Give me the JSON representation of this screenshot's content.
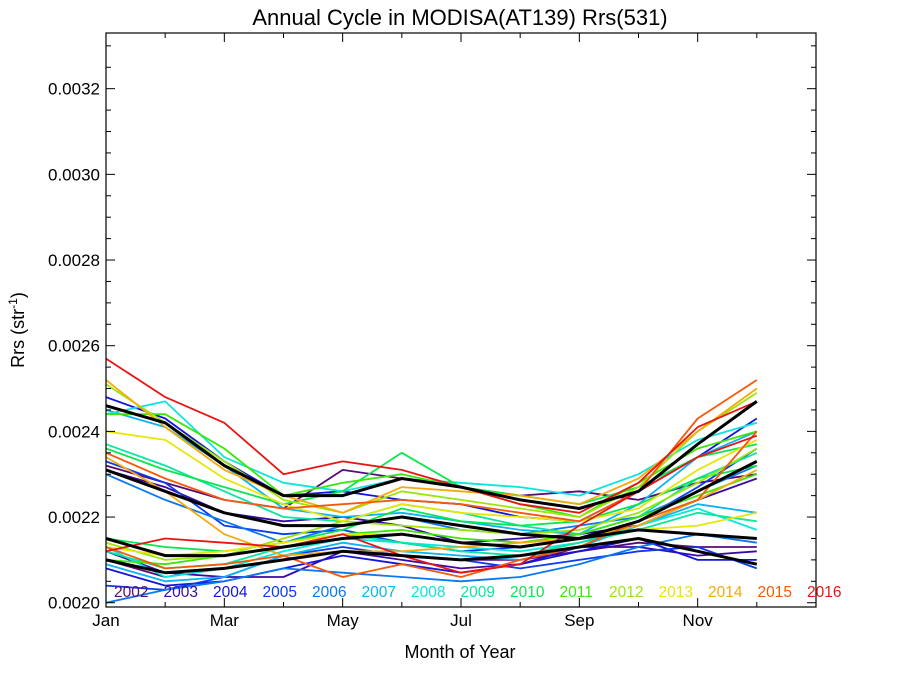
{
  "chart_data": {
    "type": "line",
    "title": "Annual Cycle in MODISA(AT139) Rrs(531)",
    "xlabel": "Month of Year",
    "ylabel": "Rrs (str",
    "ylabel_exponent": "-1",
    "ylabel_suffix": ")",
    "xlim": [
      1,
      13
    ],
    "ylim": [
      0.00199,
      0.00333
    ],
    "x": [
      1,
      2,
      3,
      4,
      5,
      6,
      7,
      8,
      9,
      10,
      11,
      12
    ],
    "xticks": [
      {
        "value": 1,
        "label": "Jan"
      },
      {
        "value": 3,
        "label": "Mar"
      },
      {
        "value": 5,
        "label": "May"
      },
      {
        "value": 7,
        "label": "Jul"
      },
      {
        "value": 9,
        "label": "Sep"
      },
      {
        "value": 11,
        "label": "Nov"
      }
    ],
    "yticks": [
      {
        "value": 0.002,
        "label": "0.0020"
      },
      {
        "value": 0.0022,
        "label": "0.0022"
      },
      {
        "value": 0.0024,
        "label": "0.0024"
      },
      {
        "value": 0.0026,
        "label": "0.0026"
      },
      {
        "value": 0.0028,
        "label": "0.0028"
      },
      {
        "value": 0.003,
        "label": "0.0030"
      },
      {
        "value": 0.0032,
        "label": "0.0032"
      }
    ],
    "grid": false,
    "legend_placement": "bottom",
    "series": [
      {
        "name": "2002",
        "color": "#5a0a78",
        "lines": [
          [
            0.00232,
            0.00228,
            0.00224,
            0.00222,
            0.00231,
            0.00229,
            0.00227,
            0.00225,
            0.00226,
            0.00224,
            0.00228,
            0.0023
          ],
          [
            0.0021,
            0.00206,
            0.00208,
            0.0021,
            0.00212,
            0.00211,
            0.0021,
            0.0021,
            0.00212,
            0.00214,
            0.00213,
            0.00213
          ]
        ]
      },
      {
        "name": "2003",
        "color": "#3a0aa5",
        "lines": [
          [
            0.00231,
            0.00227,
            0.00221,
            0.00219,
            0.0022,
            0.00218,
            0.00214,
            0.00215,
            0.00216,
            0.00218,
            0.00224,
            0.00229
          ],
          [
            0.00212,
            0.00207,
            0.00206,
            0.00206,
            0.00212,
            0.0021,
            0.00208,
            0.00209,
            0.00213,
            0.00213,
            0.00211,
            0.00212
          ]
        ]
      },
      {
        "name": "2004",
        "color": "#1414dc",
        "lines": [
          [
            0.00248,
            0.00243,
            0.00233,
            0.00225,
            0.00226,
            0.00224,
            0.00223,
            0.0022,
            0.00219,
            0.00226,
            0.00234,
            0.00243
          ],
          [
            0.00208,
            0.00204,
            0.00205,
            0.00208,
            0.00211,
            0.00209,
            0.00207,
            0.00209,
            0.00212,
            0.00215,
            0.0021,
            0.0021
          ]
        ]
      },
      {
        "name": "2005",
        "color": "#0a3cf0",
        "lines": [
          [
            0.00233,
            0.00228,
            0.00218,
            0.00216,
            0.00217,
            0.00214,
            0.00212,
            0.00213,
            0.00215,
            0.00219,
            0.00227,
            0.00236
          ],
          [
            0.00204,
            0.00203,
            0.00206,
            0.00211,
            0.00213,
            0.00211,
            0.0021,
            0.00208,
            0.0021,
            0.00212,
            0.00213,
            0.00208
          ]
        ]
      },
      {
        "name": "2006",
        "color": "#0a78f0",
        "lines": [
          [
            0.0023,
            0.00224,
            0.00219,
            0.00214,
            0.00218,
            0.0022,
            0.00217,
            0.00216,
            0.00218,
            0.0022,
            0.00226,
            0.00232
          ],
          [
            0.002,
            0.00203,
            0.00205,
            0.00208,
            0.00207,
            0.00206,
            0.00205,
            0.00206,
            0.00209,
            0.00213,
            0.00216,
            0.00214
          ]
        ]
      },
      {
        "name": "2007",
        "color": "#0ab4f5",
        "lines": [
          [
            0.00245,
            0.00241,
            0.00232,
            0.00222,
            0.0022,
            0.00221,
            0.00219,
            0.00217,
            0.00216,
            0.00223,
            0.00234,
            0.0024
          ],
          [
            0.00209,
            0.00205,
            0.00206,
            0.00211,
            0.00214,
            0.00212,
            0.00211,
            0.0021,
            0.00213,
            0.00218,
            0.00223,
            0.00221
          ]
        ]
      },
      {
        "name": "2008",
        "color": "#0ae6dc",
        "lines": [
          [
            0.00244,
            0.00247,
            0.00234,
            0.00228,
            0.00226,
            0.00229,
            0.00228,
            0.00227,
            0.00225,
            0.0023,
            0.00238,
            0.00242
          ],
          [
            0.00213,
            0.00206,
            0.00208,
            0.00212,
            0.00215,
            0.00214,
            0.00213,
            0.00212,
            0.00214,
            0.00218,
            0.00222,
            0.00217
          ]
        ]
      },
      {
        "name": "2009",
        "color": "#0ae6a0",
        "lines": [
          [
            0.00237,
            0.00232,
            0.00226,
            0.0022,
            0.00219,
            0.00223,
            0.00221,
            0.00218,
            0.00216,
            0.0022,
            0.00229,
            0.00235
          ],
          [
            0.00212,
            0.00208,
            0.00209,
            0.00213,
            0.00216,
            0.00214,
            0.00212,
            0.00211,
            0.00214,
            0.00217,
            0.00221,
            0.00219
          ]
        ]
      },
      {
        "name": "2010",
        "color": "#0ae650",
        "lines": [
          [
            0.00236,
            0.00231,
            0.00227,
            0.00223,
            0.00226,
            0.00235,
            0.00227,
            0.00225,
            0.00223,
            0.00227,
            0.00234,
            0.00237
          ],
          [
            0.00215,
            0.00213,
            0.00212,
            0.00214,
            0.00217,
            0.00222,
            0.00219,
            0.00218,
            0.00219,
            0.00223,
            0.00229,
            0.00232
          ]
        ]
      },
      {
        "name": "2011",
        "color": "#3ce60a",
        "lines": [
          [
            0.00244,
            0.00244,
            0.00236,
            0.00225,
            0.00228,
            0.0023,
            0.00227,
            0.00223,
            0.0022,
            0.00228,
            0.00236,
            0.0024
          ],
          [
            0.0021,
            0.00209,
            0.00211,
            0.00213,
            0.00216,
            0.00217,
            0.00215,
            0.00214,
            0.00216,
            0.0022,
            0.00225,
            0.0023
          ]
        ]
      },
      {
        "name": "2012",
        "color": "#9be60a",
        "lines": [
          [
            0.00251,
            0.00242,
            0.00233,
            0.00224,
            0.00221,
            0.00226,
            0.00224,
            0.00222,
            0.0022,
            0.00227,
            0.0024,
            0.00249
          ],
          [
            0.00214,
            0.0021,
            0.00211,
            0.00215,
            0.00219,
            0.00218,
            0.00217,
            0.00216,
            0.00217,
            0.00221,
            0.00228,
            0.00236
          ]
        ]
      },
      {
        "name": "2013",
        "color": "#e6e60a",
        "lines": [
          [
            0.0024,
            0.00238,
            0.00229,
            0.00223,
            0.00219,
            0.00223,
            0.00221,
            0.0022,
            0.00219,
            0.00222,
            0.00231,
            0.00238
          ],
          [
            0.00213,
            0.00211,
            0.00212,
            0.00214,
            0.00216,
            0.00216,
            0.00214,
            0.00213,
            0.00215,
            0.00217,
            0.00218,
            0.00221
          ]
        ]
      },
      {
        "name": "2014",
        "color": "#f5aa0a",
        "lines": [
          [
            0.00252,
            0.00241,
            0.00231,
            0.00225,
            0.00221,
            0.00227,
            0.00226,
            0.00225,
            0.00223,
            0.00229,
            0.0024,
            0.0025
          ],
          [
            0.00234,
            0.00226,
            0.00216,
            0.00211,
            0.00212,
            0.00212,
            0.00213,
            0.00214,
            0.00215,
            0.00218,
            0.00224,
            0.00231
          ]
        ]
      },
      {
        "name": "2015",
        "color": "#f55a0a",
        "lines": [
          [
            0.00235,
            0.00229,
            0.00224,
            0.00222,
            0.00223,
            0.00224,
            0.00223,
            0.00221,
            0.00219,
            0.00226,
            0.00243,
            0.00252
          ],
          [
            0.00213,
            0.00208,
            0.00209,
            0.00211,
            0.00206,
            0.00209,
            0.00206,
            0.0021,
            0.00213,
            0.00219,
            0.00224,
            0.0024
          ]
        ]
      },
      {
        "name": "2016",
        "color": "#eb1414",
        "lines": [
          [
            0.00257,
            0.00248,
            0.00242,
            0.0023,
            0.00233,
            0.00231,
            0.00227,
            0.00223,
            0.00221,
            0.00228,
            0.00241,
            0.00247
          ],
          [
            0.00212,
            0.00215,
            0.00214,
            0.00213,
            0.00216,
            0.00211,
            0.00207,
            0.00209,
            0.00218,
            0.00226,
            0.00234,
            0.00239
          ]
        ]
      }
    ],
    "mean_lines": {
      "color": "#000000",
      "lines": [
        [
          0.00246,
          0.00242,
          0.00232,
          0.00225,
          0.00225,
          0.00229,
          0.00227,
          0.00224,
          0.00222,
          0.00226,
          0.00237,
          0.00247
        ],
        [
          0.00231,
          0.00226,
          0.00221,
          0.00218,
          0.00218,
          0.0022,
          0.00218,
          0.00216,
          0.00215,
          0.00219,
          0.00226,
          0.00233
        ],
        [
          0.00215,
          0.00211,
          0.00211,
          0.00213,
          0.00215,
          0.00216,
          0.00214,
          0.00213,
          0.00215,
          0.00217,
          0.00216,
          0.00215
        ],
        [
          0.0021,
          0.00207,
          0.00208,
          0.0021,
          0.00212,
          0.00211,
          0.0021,
          0.00211,
          0.00213,
          0.00215,
          0.00212,
          0.00209
        ]
      ]
    }
  }
}
